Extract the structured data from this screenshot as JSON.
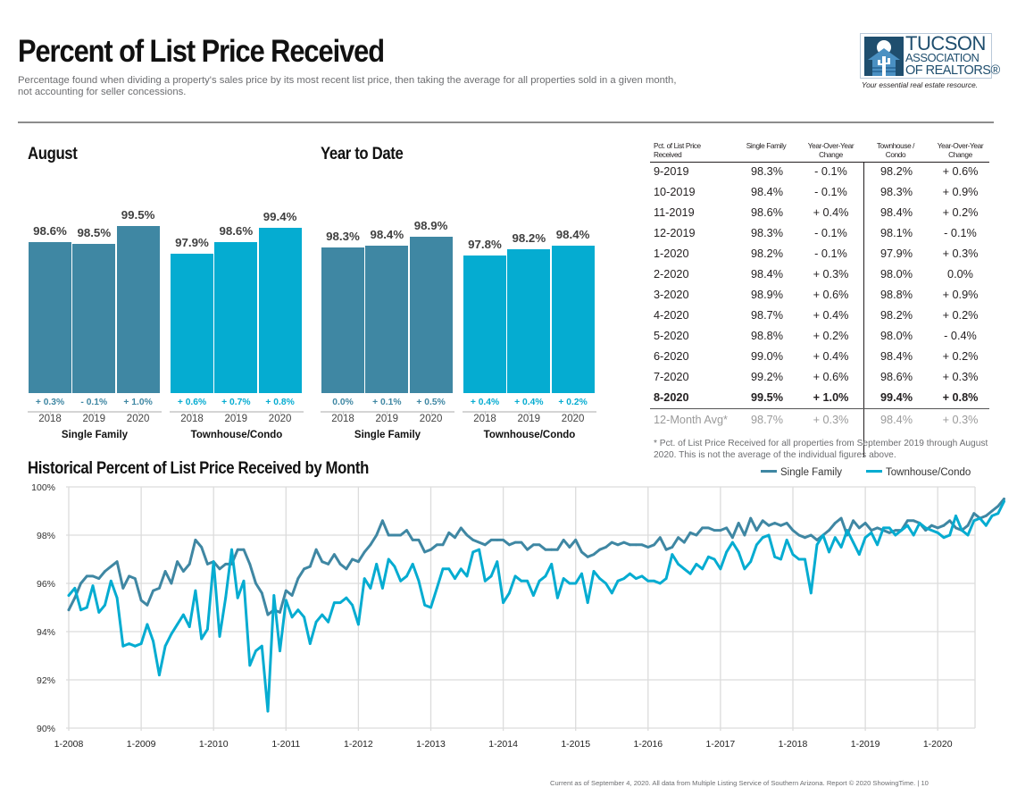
{
  "header": {
    "title": "Percent of List Price Received",
    "subtitle": "Percentage found when dividing a property's sales price by its most recent list price, then taking the average for all properties sold in a given month, not accounting for seller concessions."
  },
  "logo": {
    "line1": "TUCSON",
    "line2": "ASSOCIATION",
    "line3": "OF REALTORS®",
    "tagline": "Your essential real estate resource."
  },
  "colors": {
    "single_family": "#3f87a3",
    "townhouse_condo": "#05acd1",
    "text": "#231f20",
    "muted": "#6d6e71",
    "grid": "#dcdcdc"
  },
  "footer": "Current as of September 4, 2020. All data from Multiple Listing Service of Southern Arizona. Report © 2020 ShowingTime.  |  10",
  "chart_data": [
    {
      "type": "bar",
      "title": "August",
      "categories": [
        "2018",
        "2019",
        "2020"
      ],
      "series": [
        {
          "name": "Single Family",
          "values": [
            98.6,
            98.5,
            99.5
          ],
          "labels": [
            "98.6%",
            "98.5%",
            "99.5%"
          ],
          "changes": [
            "+ 0.3%",
            "- 0.1%",
            "+ 1.0%"
          ]
        },
        {
          "name": "Townhouse/Condo",
          "values": [
            97.9,
            98.6,
            99.4
          ],
          "labels": [
            "97.9%",
            "98.6%",
            "99.4%"
          ],
          "changes": [
            "+ 0.6%",
            "+ 0.7%",
            "+ 0.8%"
          ]
        }
      ]
    },
    {
      "type": "bar",
      "title": "Year to Date",
      "categories": [
        "2018",
        "2019",
        "2020"
      ],
      "series": [
        {
          "name": "Single Family",
          "values": [
            98.3,
            98.4,
            98.9
          ],
          "labels": [
            "98.3%",
            "98.4%",
            "98.9%"
          ],
          "changes": [
            "0.0%",
            "+ 0.1%",
            "+ 0.5%"
          ]
        },
        {
          "name": "Townhouse/Condo",
          "values": [
            97.8,
            98.2,
            98.4
          ],
          "labels": [
            "97.8%",
            "98.2%",
            "98.4%"
          ],
          "changes": [
            "+ 0.4%",
            "+ 0.4%",
            "+ 0.2%"
          ]
        }
      ]
    },
    {
      "type": "table",
      "columns": [
        "Pct. of List Price Received",
        "Single Family",
        "Year-Over-Year Change",
        "Townhouse / Condo",
        "Year-Over-Year Change"
      ],
      "rows": [
        [
          "9-2019",
          "98.3%",
          "- 0.1%",
          "98.2%",
          "+ 0.6%"
        ],
        [
          "10-2019",
          "98.4%",
          "- 0.1%",
          "98.3%",
          "+ 0.9%"
        ],
        [
          "11-2019",
          "98.6%",
          "+ 0.4%",
          "98.4%",
          "+ 0.2%"
        ],
        [
          "12-2019",
          "98.3%",
          "- 0.1%",
          "98.1%",
          "- 0.1%"
        ],
        [
          "1-2020",
          "98.2%",
          "- 0.1%",
          "97.9%",
          "+ 0.3%"
        ],
        [
          "2-2020",
          "98.4%",
          "+ 0.3%",
          "98.0%",
          "0.0%"
        ],
        [
          "3-2020",
          "98.9%",
          "+ 0.6%",
          "98.8%",
          "+ 0.9%"
        ],
        [
          "4-2020",
          "98.7%",
          "+ 0.4%",
          "98.2%",
          "+ 0.2%"
        ],
        [
          "5-2020",
          "98.8%",
          "+ 0.2%",
          "98.0%",
          "- 0.4%"
        ],
        [
          "6-2020",
          "99.0%",
          "+ 0.4%",
          "98.4%",
          "+ 0.2%"
        ],
        [
          "7-2020",
          "99.2%",
          "+ 0.6%",
          "98.6%",
          "+ 0.3%"
        ],
        [
          "8-2020",
          "99.5%",
          "+ 1.0%",
          "99.4%",
          "+ 0.8%"
        ]
      ],
      "bold_row": 11,
      "avg_row": [
        "12-Month Avg*",
        "98.7%",
        "+ 0.3%",
        "98.4%",
        "+ 0.3%"
      ],
      "footnote": "* Pct. of List Price Received for all properties from September 2019 through August 2020. This is not the average of the individual figures above."
    },
    {
      "type": "line",
      "title": "Historical Percent of List Price Received by Month",
      "xlabel": "",
      "ylabel": "",
      "ylim": [
        90,
        100
      ],
      "yticks": [
        "90%",
        "92%",
        "94%",
        "96%",
        "98%",
        "100%"
      ],
      "ytick_values": [
        90,
        92,
        94,
        96,
        98,
        100
      ],
      "xticks": [
        "1-2008",
        "1-2009",
        "1-2010",
        "1-2011",
        "1-2012",
        "1-2013",
        "1-2014",
        "1-2015",
        "1-2016",
        "1-2017",
        "1-2018",
        "1-2019",
        "1-2020"
      ],
      "x_start": "1-2008",
      "x_end": "8-2020",
      "grid": true,
      "legend": "top-right",
      "series": [
        {
          "name": "Single Family",
          "values": [
            94.9,
            95.4,
            96.0,
            96.3,
            96.3,
            96.2,
            96.5,
            96.7,
            96.9,
            95.8,
            96.3,
            96.2,
            95.3,
            95.1,
            95.7,
            95.8,
            96.5,
            96.0,
            96.9,
            96.5,
            96.8,
            97.8,
            97.5,
            96.8,
            96.9,
            96.6,
            96.8,
            96.8,
            97.4,
            97.4,
            96.8,
            96.0,
            95.6,
            94.7,
            94.9,
            94.8,
            95.7,
            95.5,
            96.2,
            96.6,
            96.7,
            97.4,
            96.9,
            96.8,
            97.2,
            96.8,
            96.6,
            97.0,
            96.9,
            97.3,
            97.6,
            98.0,
            98.6,
            98.0,
            98.0,
            98.0,
            98.2,
            97.8,
            97.8,
            97.3,
            97.4,
            97.6,
            97.6,
            98.1,
            97.9,
            98.3,
            98.0,
            97.8,
            97.7,
            97.6,
            97.8,
            97.8,
            97.8,
            97.6,
            97.7,
            97.7,
            97.4,
            97.6,
            97.6,
            97.4,
            97.4,
            97.4,
            97.8,
            97.5,
            97.8,
            97.3,
            97.1,
            97.2,
            97.4,
            97.5,
            97.7,
            97.6,
            97.7,
            97.6,
            97.6,
            97.6,
            97.5,
            97.6,
            97.9,
            97.4,
            97.5,
            97.9,
            97.7,
            98.1,
            98.0,
            98.3,
            98.3,
            98.2,
            98.2,
            98.3,
            97.9,
            98.5,
            98.0,
            98.7,
            98.2,
            98.6,
            98.4,
            98.5,
            98.4,
            98.5,
            98.2,
            98.0,
            97.9,
            98.0,
            97.8,
            98.0,
            98.2,
            98.5,
            98.7,
            98.0,
            98.6,
            98.3,
            98.5,
            98.2,
            98.3,
            98.2,
            98.1,
            98.2,
            98.2,
            98.6,
            98.6,
            98.5,
            98.2,
            98.4,
            98.3,
            98.4,
            98.6,
            98.3,
            98.2,
            98.4,
            98.9,
            98.7,
            98.8,
            99.0,
            99.2,
            99.5
          ]
        },
        {
          "name": "Townhouse/Condo",
          "values": [
            95.5,
            95.8,
            94.9,
            95.0,
            95.9,
            94.8,
            95.1,
            96.1,
            95.4,
            93.4,
            93.5,
            93.4,
            93.5,
            94.3,
            93.6,
            92.2,
            93.4,
            93.9,
            94.3,
            94.7,
            94.2,
            95.7,
            93.7,
            94.1,
            96.9,
            93.8,
            95.4,
            97.4,
            95.4,
            96.1,
            92.6,
            93.2,
            93.4,
            90.7,
            95.5,
            93.2,
            95.3,
            94.6,
            94.9,
            94.6,
            93.5,
            94.4,
            94.7,
            94.4,
            95.2,
            95.2,
            95.4,
            95.1,
            94.3,
            96.2,
            95.8,
            96.8,
            95.8,
            97.0,
            96.7,
            96.1,
            96.3,
            96.8,
            96.1,
            95.1,
            95.0,
            95.8,
            96.6,
            96.6,
            96.2,
            96.6,
            96.3,
            97.3,
            97.4,
            96.1,
            96.3,
            96.9,
            95.2,
            95.6,
            96.3,
            96.1,
            96.1,
            95.5,
            96.1,
            96.3,
            96.8,
            95.4,
            96.2,
            96.0,
            96.0,
            96.4,
            95.2,
            96.5,
            96.2,
            96.0,
            95.6,
            96.1,
            96.2,
            96.4,
            96.2,
            96.3,
            96.1,
            96.1,
            96.0,
            96.2,
            97.2,
            96.8,
            96.6,
            96.4,
            96.8,
            96.6,
            97.1,
            97.0,
            96.6,
            97.3,
            97.7,
            97.3,
            96.6,
            96.9,
            97.6,
            97.9,
            98.0,
            97.1,
            97.0,
            97.8,
            97.2,
            97.0,
            97.0,
            95.6,
            97.6,
            98.0,
            97.3,
            97.9,
            97.5,
            98.2,
            97.7,
            97.2,
            97.9,
            98.1,
            97.6,
            98.3,
            98.3,
            98.0,
            98.2,
            98.4,
            98.0,
            98.5,
            98.3,
            98.2,
            98.1,
            97.9,
            98.0,
            98.8,
            98.2,
            98.0,
            98.6,
            98.7,
            98.4,
            98.8,
            98.9,
            99.4
          ]
        }
      ]
    }
  ]
}
